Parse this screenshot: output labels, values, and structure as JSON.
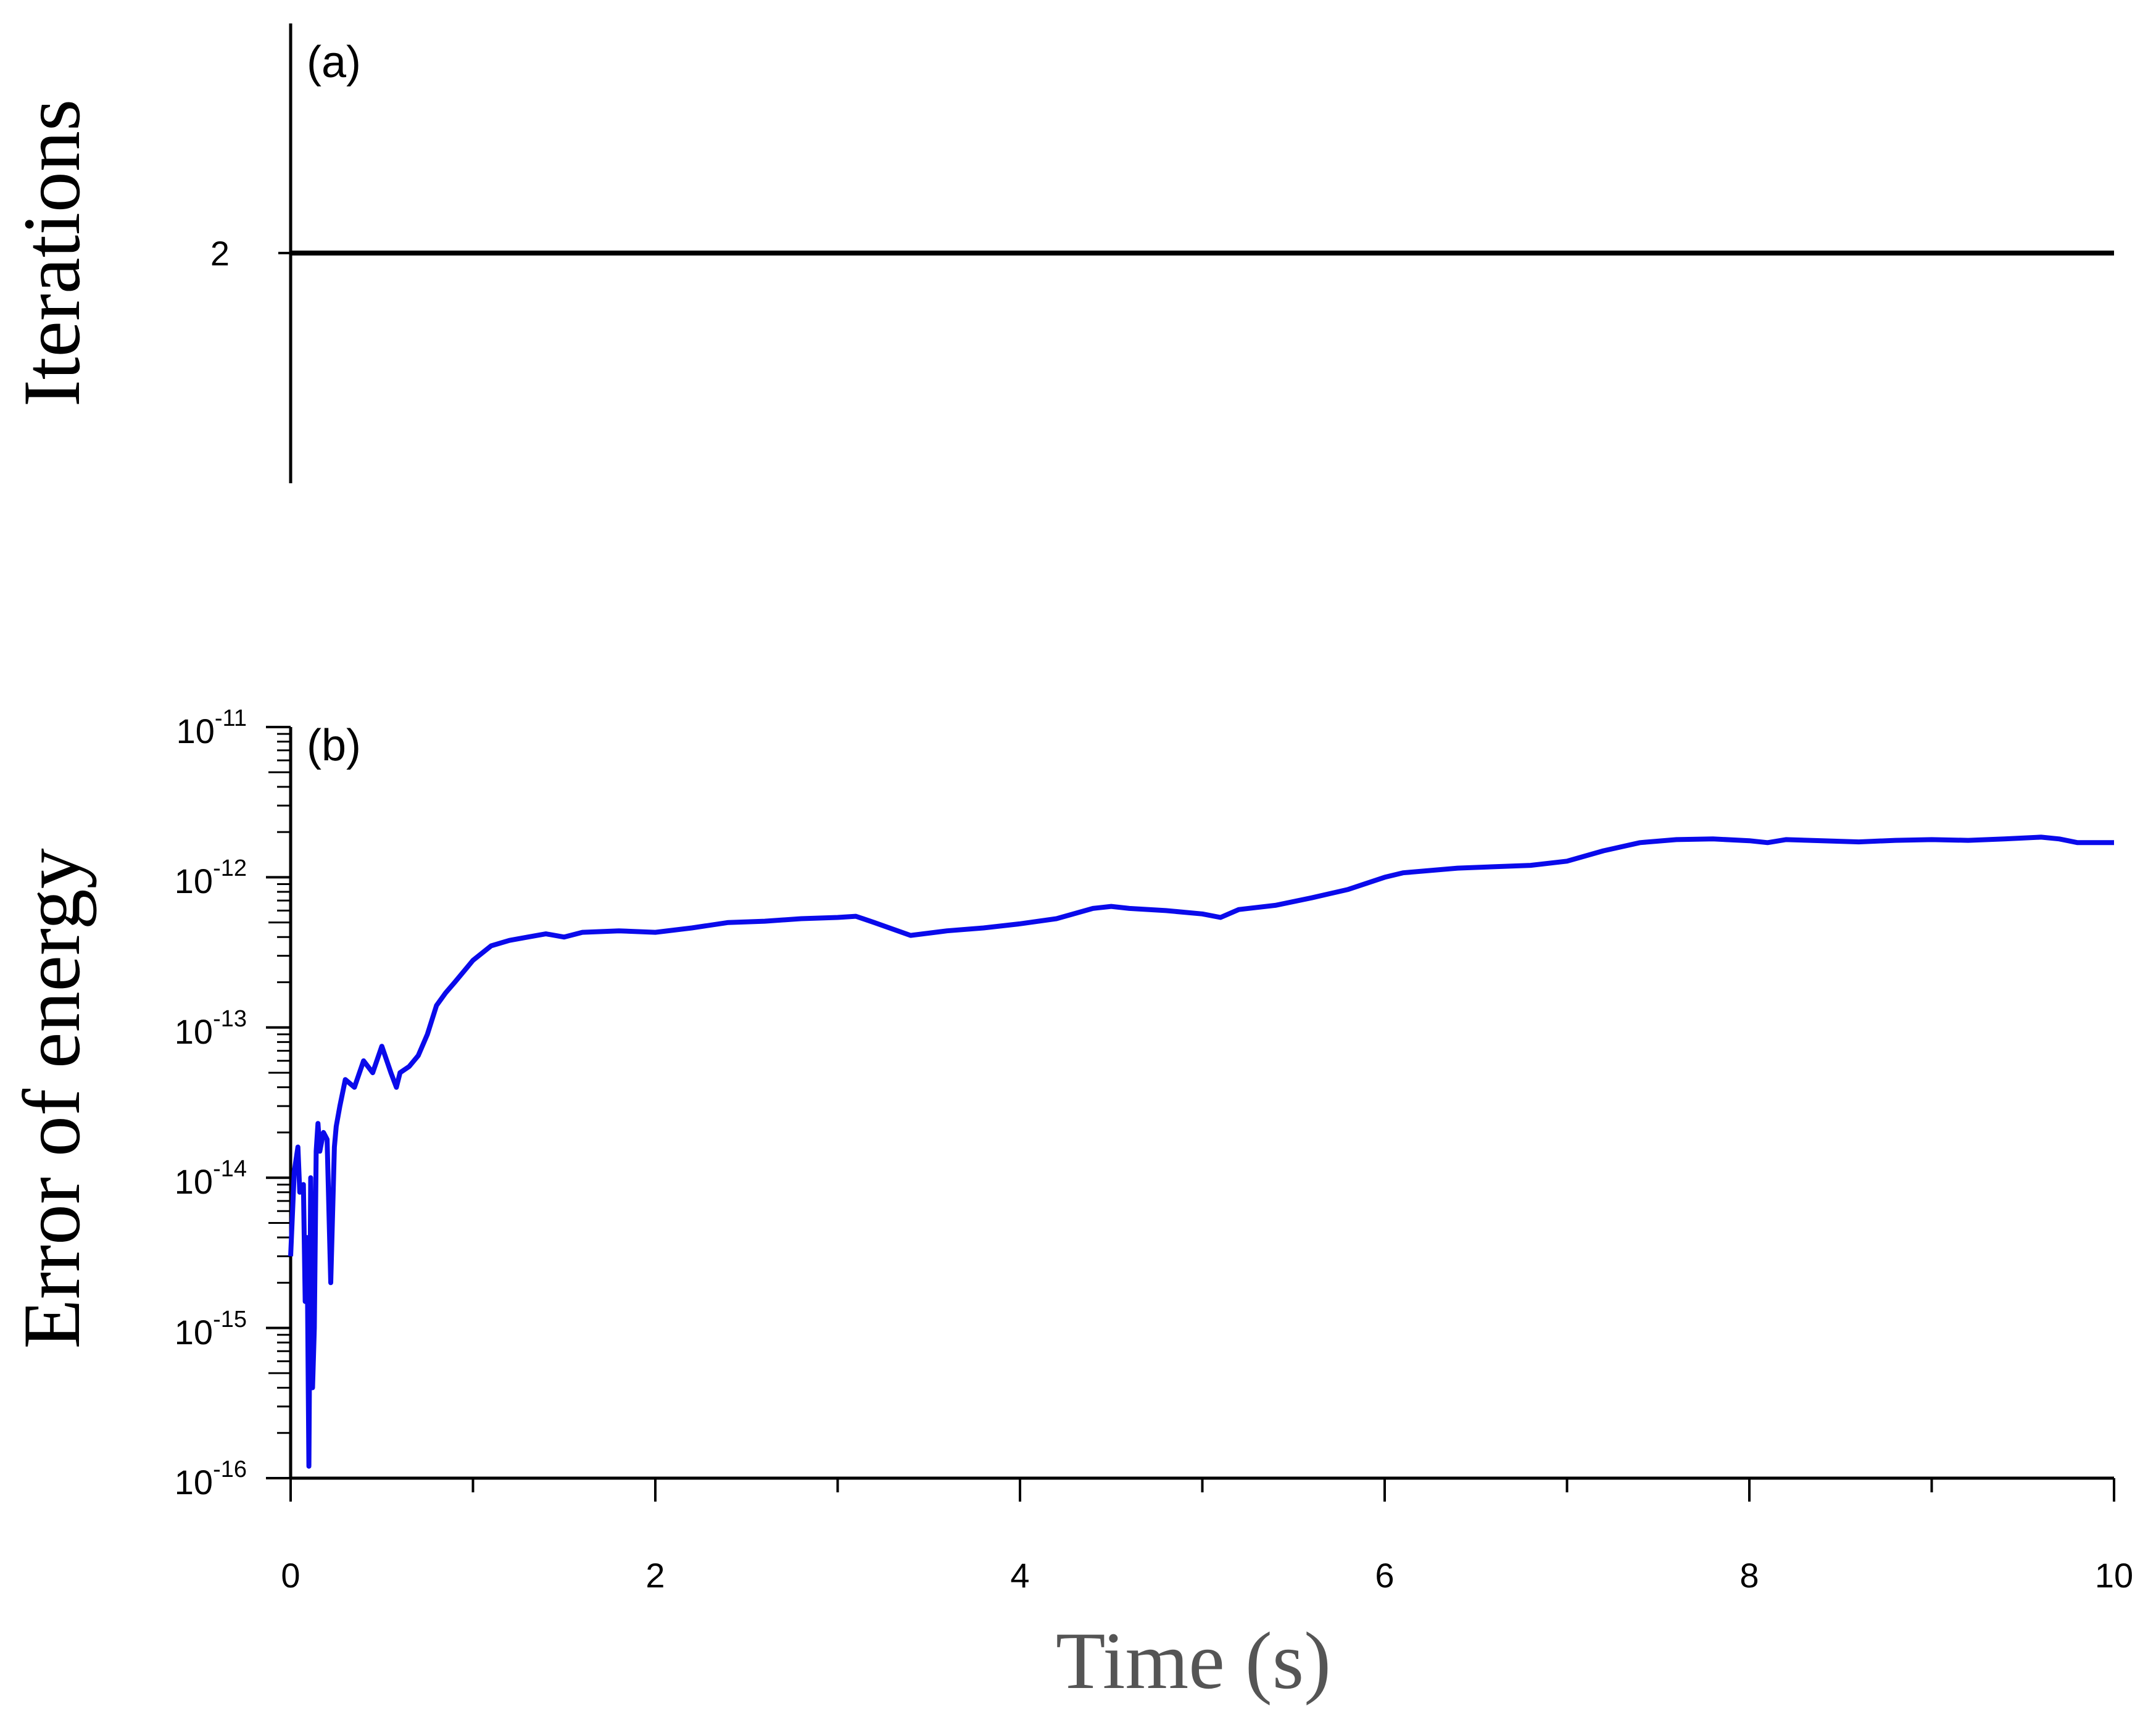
{
  "colors": {
    "axis": "#000000",
    "series_a": "#000000",
    "series_b": "#0a0aeb",
    "xlabel": "#555555"
  },
  "chart_data": [
    {
      "type": "line",
      "panel_label": "(a)",
      "title": "",
      "xlabel": "",
      "ylabel": "Iterations",
      "xlim": [
        0,
        10
      ],
      "yticks": [
        "2"
      ],
      "grid": false,
      "series": [
        {
          "x": [
            0,
            10
          ],
          "y": [
            2,
            2
          ]
        }
      ]
    },
    {
      "type": "line",
      "panel_label": "(b)",
      "title": "",
      "xlabel": "Time (s)",
      "ylabel": "Error of energy",
      "xlim": [
        0,
        10
      ],
      "ylim": [
        1e-16,
        1e-11
      ],
      "yscale": "log",
      "xticks": [
        "0",
        "2",
        "4",
        "6",
        "8",
        "10"
      ],
      "yticks": [
        {
          "base": "10",
          "exp": "-11"
        },
        {
          "base": "10",
          "exp": "-12"
        },
        {
          "base": "10",
          "exp": "-13"
        },
        {
          "base": "10",
          "exp": "-14"
        },
        {
          "base": "10",
          "exp": "-15"
        },
        {
          "base": "10",
          "exp": "-16"
        }
      ],
      "grid": false,
      "series": [
        {
          "x": [
            0,
            0.02,
            0.04,
            0.05,
            0.07,
            0.08,
            0.09,
            0.1,
            0.11,
            0.12,
            0.13,
            0.14,
            0.15,
            0.16,
            0.18,
            0.2,
            0.22,
            0.24,
            0.25,
            0.27,
            0.3,
            0.35,
            0.4,
            0.45,
            0.5,
            0.55,
            0.58,
            0.6,
            0.65,
            0.7,
            0.75,
            0.8,
            0.85,
            0.9,
            1.0,
            1.1,
            1.2,
            1.3,
            1.4,
            1.5,
            1.6,
            1.8,
            2.0,
            2.2,
            2.4,
            2.6,
            2.8,
            3.0,
            3.1,
            3.2,
            3.4,
            3.6,
            3.8,
            4.0,
            4.2,
            4.4,
            4.5,
            4.6,
            4.8,
            5.0,
            5.1,
            5.2,
            5.4,
            5.6,
            5.8,
            6.0,
            6.1,
            6.4,
            6.8,
            7.0,
            7.2,
            7.4,
            7.6,
            7.8,
            8.0,
            8.1,
            8.2,
            8.4,
            8.6,
            8.8,
            9.0,
            9.2,
            9.4,
            9.6,
            9.7,
            9.8,
            10.0
          ],
          "y": [
            3e-15,
            1.1e-14,
            1.6e-14,
            8e-15,
            9e-15,
            1.5e-15,
            4e-15,
            1.2e-16,
            1e-14,
            4e-16,
            1e-15,
            1.5e-14,
            2.3e-14,
            1.5e-14,
            2e-14,
            1.8e-14,
            2e-15,
            1.6e-14,
            2.2e-14,
            3e-14,
            4.5e-14,
            4e-14,
            6e-14,
            5e-14,
            7.5e-14,
            5e-14,
            4e-14,
            5e-14,
            5.5e-14,
            6.5e-14,
            9e-14,
            1.4e-13,
            1.7e-13,
            2e-13,
            2.8e-13,
            3.5e-13,
            3.8e-13,
            4e-13,
            4.2e-13,
            4e-13,
            4.3e-13,
            4.4e-13,
            4.3e-13,
            4.6e-13,
            5e-13,
            5.1e-13,
            5.3e-13,
            5.4e-13,
            5.5e-13,
            5e-13,
            4.1e-13,
            4.4e-13,
            4.6e-13,
            4.9e-13,
            5.3e-13,
            6.2e-13,
            6.4e-13,
            6.2e-13,
            6e-13,
            5.7e-13,
            5.4e-13,
            6.1e-13,
            6.5e-13,
            7.3e-13,
            8.3e-13,
            1e-12,
            1.07e-12,
            1.15e-12,
            1.2e-12,
            1.28e-12,
            1.5e-12,
            1.7e-12,
            1.78e-12,
            1.8e-12,
            1.75e-12,
            1.7e-12,
            1.78e-12,
            1.75e-12,
            1.72e-12,
            1.76e-12,
            1.78e-12,
            1.76e-12,
            1.8e-12,
            1.85e-12,
            1.8e-12,
            1.7e-12,
            1.7e-12
          ]
        }
      ]
    }
  ]
}
